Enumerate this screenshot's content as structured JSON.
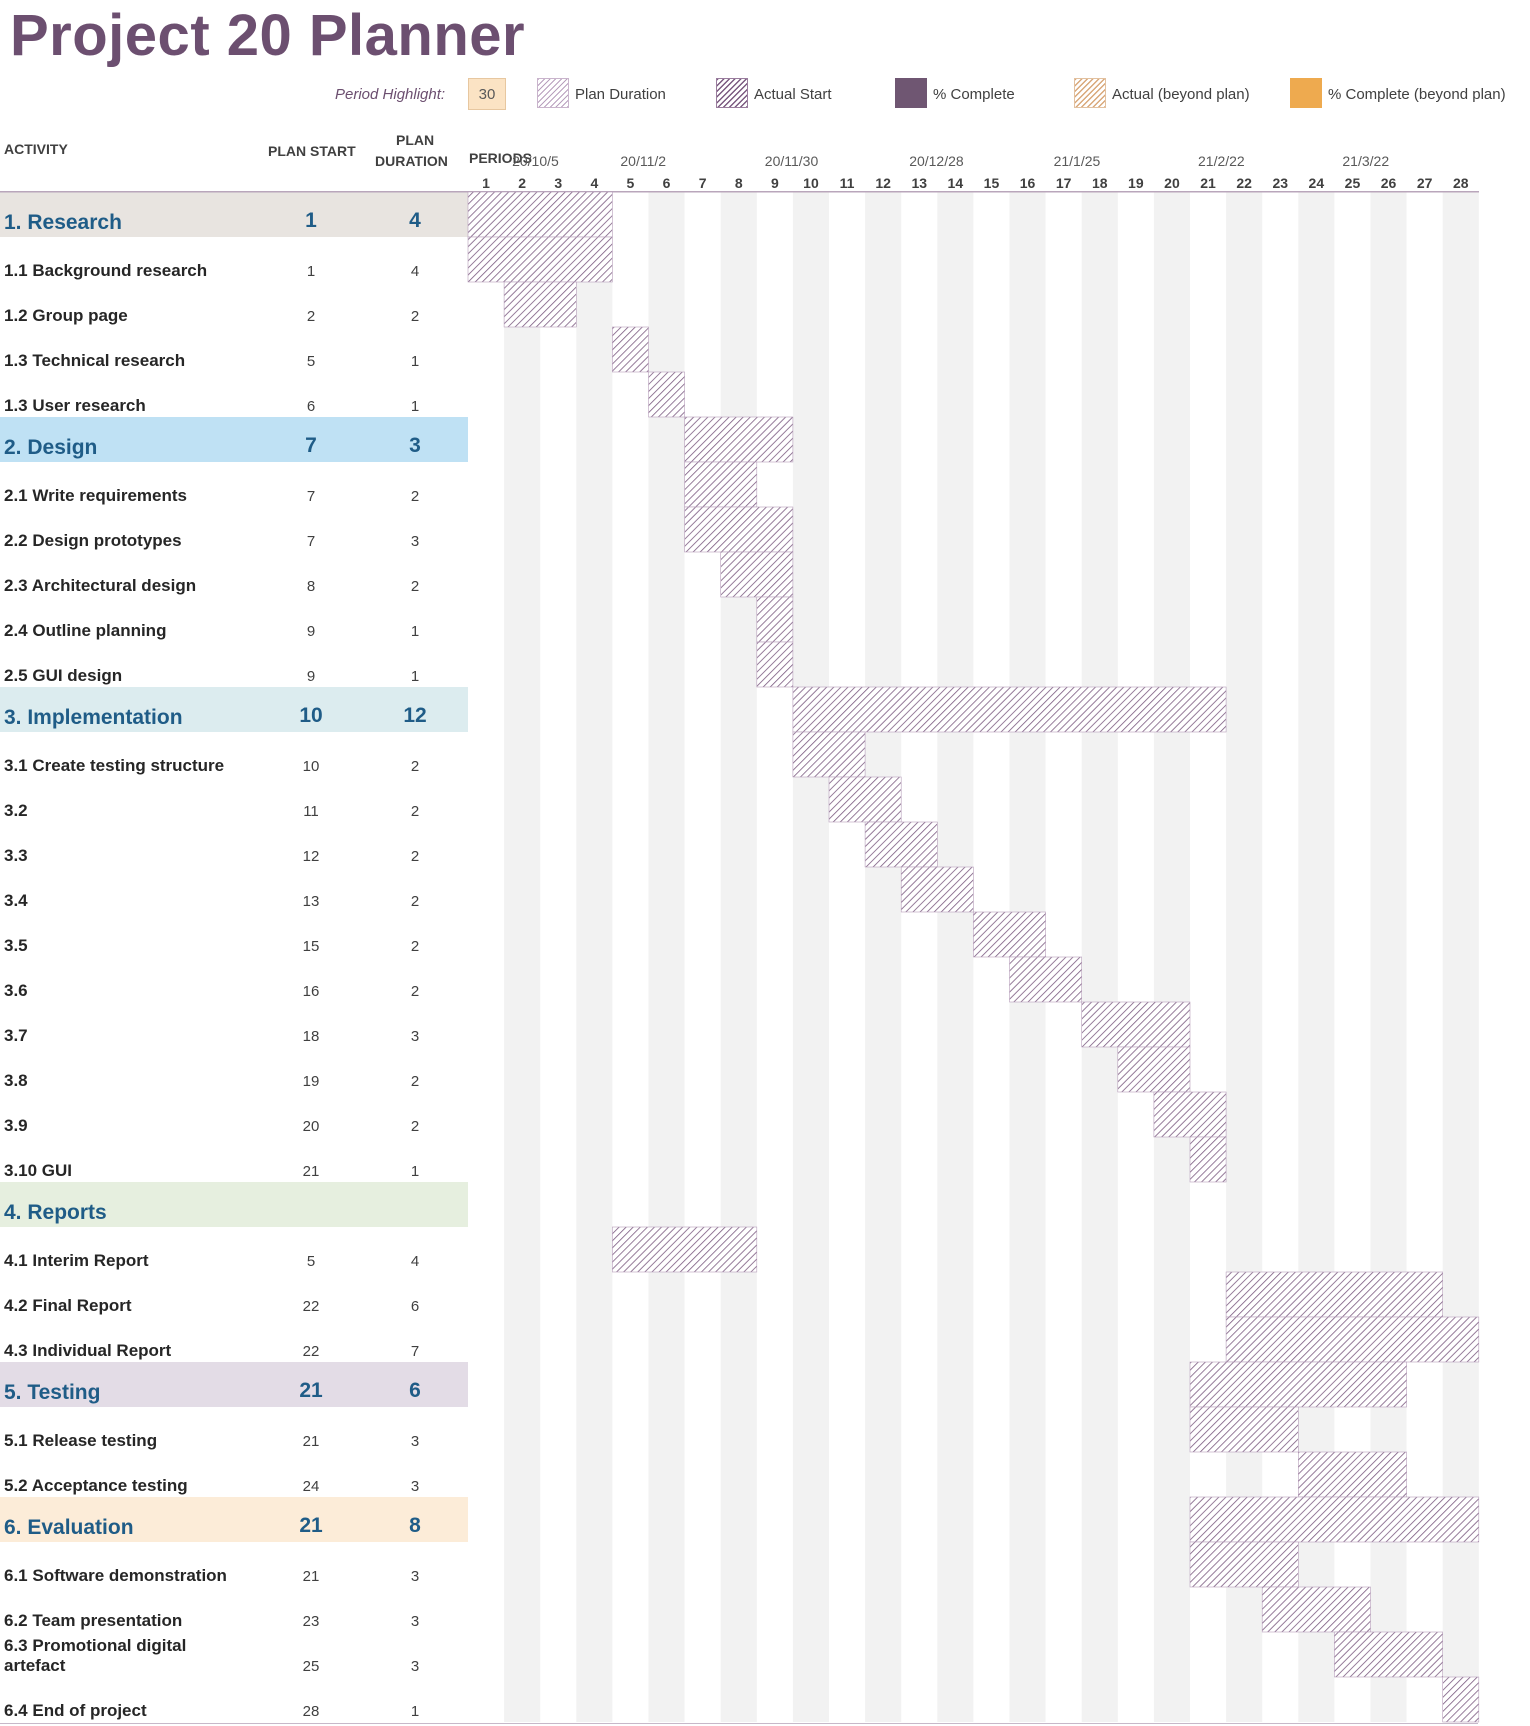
{
  "title": "Project 20 Planner",
  "legend": {
    "period_highlight_label": "Period Highlight:",
    "period_highlight_value": "30",
    "items": [
      {
        "label": "Plan Duration",
        "icon": "plan-duration-swatch"
      },
      {
        "label": "Actual Start",
        "icon": "actual-start-swatch"
      },
      {
        "label": "% Complete",
        "icon": "percent-complete-swatch"
      },
      {
        "label": "Actual (beyond plan)",
        "icon": "actual-beyond-plan-swatch"
      },
      {
        "label": "% Complete (beyond plan)",
        "icon": "percent-complete-beyond-plan-swatch"
      }
    ]
  },
  "headers": {
    "activity": "ACTIVITY",
    "plan_start": "PLAN START",
    "plan_duration_line1": "PLAN",
    "plan_duration_line2": "DURATION",
    "periods": "PERIODS"
  },
  "colors": {
    "title": "#6c4f70",
    "plan_hatch": "#7b5a80",
    "stripe": "#f2f2f2",
    "phase_research": "#e8e4e0",
    "phase_design": "#bfe1f4",
    "phase_implementation": "#dcecef",
    "phase_reports": "#e6efdf",
    "phase_testing": "#e3dce6",
    "phase_evaluation": "#fcecd8",
    "phase_text": "#1f5c87"
  },
  "chart_data": {
    "type": "gantt",
    "period_numbers": [
      1,
      2,
      3,
      4,
      5,
      6,
      7,
      8,
      9,
      10,
      11,
      12,
      13,
      14,
      15,
      16,
      17,
      18,
      19,
      20,
      21,
      22,
      23,
      24,
      25,
      26,
      27,
      28
    ],
    "date_labels": [
      {
        "period": 2,
        "label": "20/10/5"
      },
      {
        "period": 5,
        "label": "20/11/2"
      },
      {
        "period": 9,
        "label": "20/11/30"
      },
      {
        "period": 13,
        "label": "20/12/28"
      },
      {
        "period": 17,
        "label": "21/1/25"
      },
      {
        "period": 21,
        "label": "21/2/22"
      },
      {
        "period": 25,
        "label": "21/3/22"
      }
    ],
    "rows": [
      {
        "name": "1. Research",
        "phase": true,
        "color": "phase_research",
        "start": "1",
        "duration": "4"
      },
      {
        "name": "1.1 Background research",
        "start": "1",
        "duration": "4"
      },
      {
        "name": "1.2 Group page",
        "start": "2",
        "duration": "2"
      },
      {
        "name": "1.3 Technical research",
        "start": "5",
        "duration": "1"
      },
      {
        "name": "1.3 User research",
        "start": "6",
        "duration": "1"
      },
      {
        "name": "2. Design",
        "phase": true,
        "color": "phase_design",
        "start": "7",
        "duration": "3"
      },
      {
        "name": "2.1 Write requirements",
        "start": "7",
        "duration": "2"
      },
      {
        "name": "2.2 Design prototypes",
        "start": "7",
        "duration": "3"
      },
      {
        "name": "2.3 Architectural design",
        "start": "8",
        "duration": "2"
      },
      {
        "name": "2.4 Outline planning",
        "start": "9",
        "duration": "1"
      },
      {
        "name": "2.5 GUI design",
        "start": "9",
        "duration": "1"
      },
      {
        "name": "3. Implementation",
        "phase": true,
        "color": "phase_implementation",
        "start": "10",
        "duration": "12"
      },
      {
        "name": "3.1 Create testing structure",
        "start": "10",
        "duration": "2"
      },
      {
        "name": "3.2",
        "start": "11",
        "duration": "2"
      },
      {
        "name": "3.3",
        "start": "12",
        "duration": "2"
      },
      {
        "name": "3.4",
        "start": "13",
        "duration": "2"
      },
      {
        "name": "3.5",
        "start": "15",
        "duration": "2"
      },
      {
        "name": "3.6",
        "start": "16",
        "duration": "2"
      },
      {
        "name": "3.7",
        "start": "18",
        "duration": "3"
      },
      {
        "name": "3.8",
        "start": "19",
        "duration": "2"
      },
      {
        "name": "3.9",
        "start": "20",
        "duration": "2"
      },
      {
        "name": "3.10 GUI",
        "start": "21",
        "duration": "1"
      },
      {
        "name": "4. Reports",
        "phase": true,
        "color": "phase_reports",
        "start": "",
        "duration": ""
      },
      {
        "name": "4.1 Interim Report",
        "start": "5",
        "duration": "4"
      },
      {
        "name": "4.2 Final Report",
        "start": "22",
        "duration": "6"
      },
      {
        "name": "4.3 Individual Report",
        "start": "22",
        "duration": "7"
      },
      {
        "name": "5. Testing",
        "phase": true,
        "color": "phase_testing",
        "start": "21",
        "duration": "6"
      },
      {
        "name": "5.1 Release testing",
        "start": "21",
        "duration": "3"
      },
      {
        "name": "5.2 Acceptance testing",
        "start": "24",
        "duration": "3"
      },
      {
        "name": "6. Evaluation",
        "phase": true,
        "color": "phase_evaluation",
        "start": "21",
        "duration": "8"
      },
      {
        "name": "6.1 Software demonstration",
        "start": "21",
        "duration": "3"
      },
      {
        "name": "6.2 Team presentation",
        "start": "23",
        "duration": "3"
      },
      {
        "name": "6.3 Promotional digital artefact",
        "start": "25",
        "duration": "3"
      },
      {
        "name": "6.4 End of project",
        "start": "28",
        "duration": "1"
      }
    ]
  }
}
